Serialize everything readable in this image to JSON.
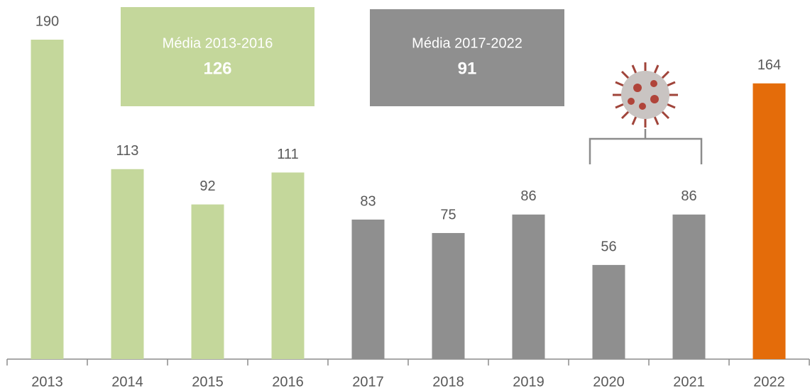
{
  "chart_data": {
    "type": "bar",
    "categories": [
      "2013",
      "2014",
      "2015",
      "2016",
      "2017",
      "2018",
      "2019",
      "2020",
      "2021",
      "2022"
    ],
    "values": [
      190,
      113,
      92,
      111,
      83,
      75,
      86,
      56,
      86,
      164
    ],
    "colors": [
      "#c4d79b",
      "#c4d79b",
      "#c4d79b",
      "#c4d79b",
      "#8f8f8f",
      "#8f8f8f",
      "#8f8f8f",
      "#8f8f8f",
      "#8f8f8f",
      "#e46c0a"
    ],
    "annotations": [
      {
        "text": "Média 2013-2016",
        "value": 126,
        "color": "#c4d79b"
      },
      {
        "text": "Média 2017-2022",
        "value": 91,
        "color": "#8f8f8f"
      }
    ]
  }
}
